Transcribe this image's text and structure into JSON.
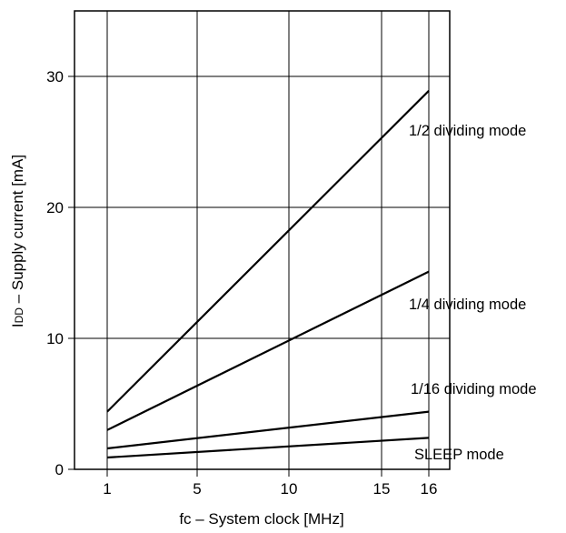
{
  "chart_data": {
    "type": "line",
    "xlabel": "fc – System clock [MHz]",
    "ylabel": {
      "prefix": "I",
      "subscript": "DD",
      "suffix": " – Supply current [mA]"
    },
    "x_ticks": [
      {
        "value": 1,
        "label": "1"
      },
      {
        "value": 5,
        "label": "5"
      },
      {
        "value": 10,
        "label": "10"
      },
      {
        "value": 15,
        "label": "15"
      },
      {
        "value": 16,
        "label": "16"
      }
    ],
    "y_ticks": [
      {
        "value": 0,
        "label": "0"
      },
      {
        "value": 10,
        "label": "10"
      },
      {
        "value": 20,
        "label": "20"
      },
      {
        "value": 30,
        "label": "30"
      }
    ],
    "ylim": [
      0,
      35
    ],
    "grid": true,
    "series": [
      {
        "name": "1/2 dividing mode",
        "x": [
          1,
          16
        ],
        "values": [
          4.4,
          28.9
        ]
      },
      {
        "name": "1/4 dividing mode",
        "x": [
          1,
          16
        ],
        "values": [
          3.0,
          15.1
        ]
      },
      {
        "name": "1/16 dividing mode",
        "x": [
          1,
          16
        ],
        "values": [
          1.6,
          4.4
        ]
      },
      {
        "name": "SLEEP mode",
        "x": [
          1,
          16
        ],
        "values": [
          0.9,
          2.4
        ]
      }
    ]
  }
}
